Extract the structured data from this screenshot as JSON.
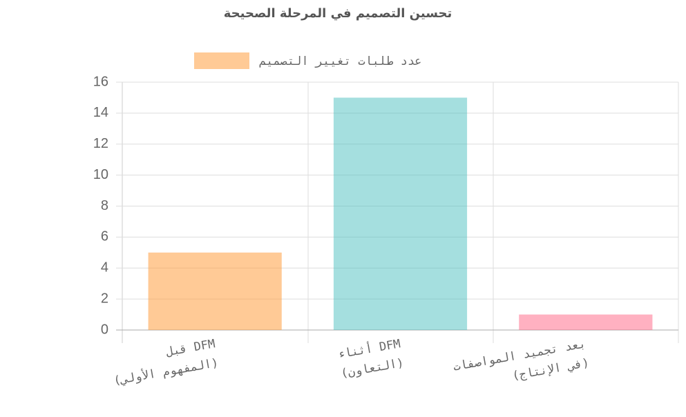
{
  "chart_data": {
    "type": "bar",
    "title": "تحسين التصميم في المرحلة الصحيحة",
    "categories": [
      [
        "قبل DFM",
        "(المفهوم الأولي)"
      ],
      [
        "أثناء DFM",
        "(التعاون)"
      ],
      [
        "بعد تجميد المواصفات",
        "(في الإنتاج)"
      ]
    ],
    "series": [
      {
        "name": "عدد طلبات تغيير التصميم",
        "values": [
          5,
          15,
          1
        ],
        "colors": [
          "rgba(255,159,64,0.55)",
          "rgba(75,192,192,0.5)",
          "rgba(255,99,132,0.5)"
        ]
      }
    ],
    "ylim": [
      0,
      16
    ],
    "yticks": [
      0,
      2,
      4,
      6,
      8,
      10,
      12,
      14,
      16
    ],
    "grid": true
  }
}
